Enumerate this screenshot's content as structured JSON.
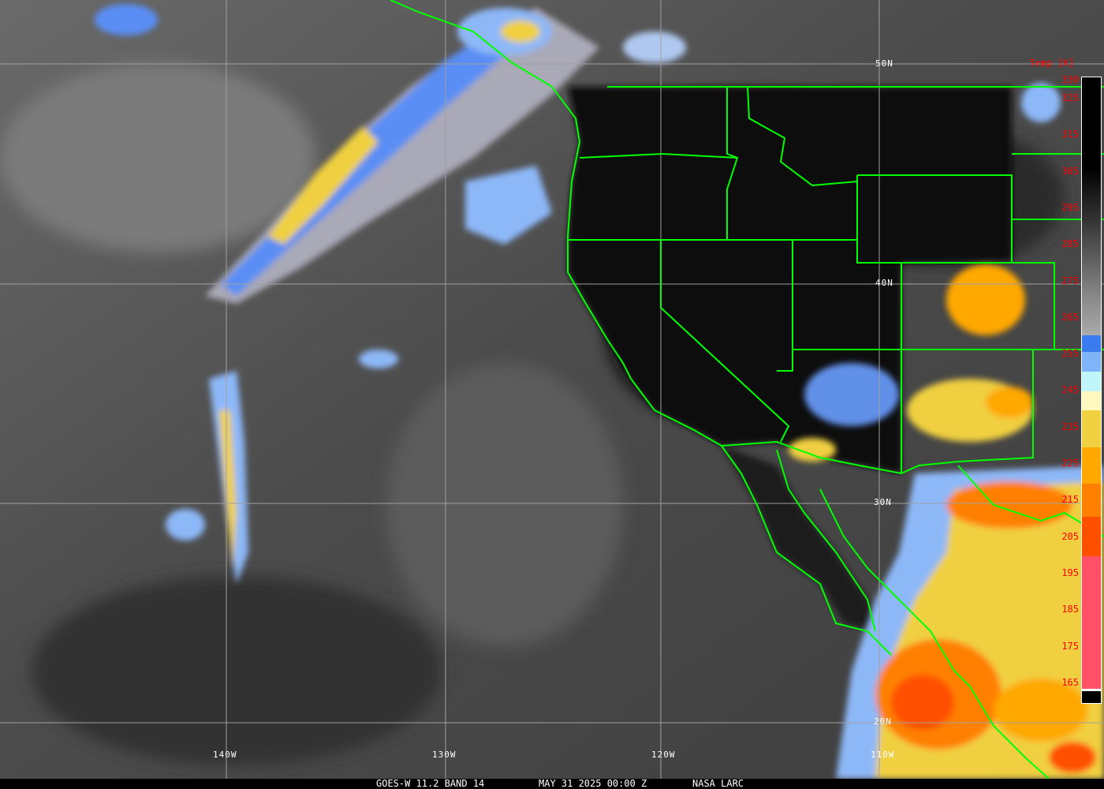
{
  "footer": {
    "satellite_band": "GOES-W 11.2 BAND 14",
    "datetime": "MAY 31 2025 00:00 Z",
    "credit": "NASA LARC"
  },
  "grid": {
    "longitudes": [
      "140W",
      "130W",
      "120W",
      "110W"
    ],
    "latitudes": [
      "50N",
      "40N",
      "30N",
      "20N"
    ]
  },
  "legend": {
    "title": "Temp [K]",
    "ticks": [
      "330",
      "325",
      "315",
      "305",
      "295",
      "285",
      "275",
      "265",
      "255",
      "245",
      "235",
      "225",
      "215",
      "205",
      "195",
      "185",
      "175",
      "165"
    ],
    "color_bands": [
      {
        "from_K": 330,
        "to_K": 255,
        "color": "gradient black-to-gray"
      },
      {
        "from_K": 255,
        "to_K": 252,
        "color": "#3a7cf0"
      },
      {
        "from_K": 252,
        "to_K": 247,
        "color": "#80b4f8"
      },
      {
        "from_K": 247,
        "to_K": 242,
        "color": "#c0f6fa"
      },
      {
        "from_K": 242,
        "to_K": 238,
        "color": "#fff8c0"
      },
      {
        "from_K": 238,
        "to_K": 228,
        "color": "#f0d040"
      },
      {
        "from_K": 228,
        "to_K": 218,
        "color": "#ffa800"
      },
      {
        "from_K": 218,
        "to_K": 209,
        "color": "#ff8000"
      },
      {
        "from_K": 209,
        "to_K": 198,
        "color": "#ff5000"
      },
      {
        "from_K": 198,
        "to_K": 165,
        "color": "#ff5068"
      }
    ]
  },
  "colors": {
    "borders": "#00ff00",
    "gridlines": "#a0a0a0",
    "tick_labels": "#ff0000"
  }
}
